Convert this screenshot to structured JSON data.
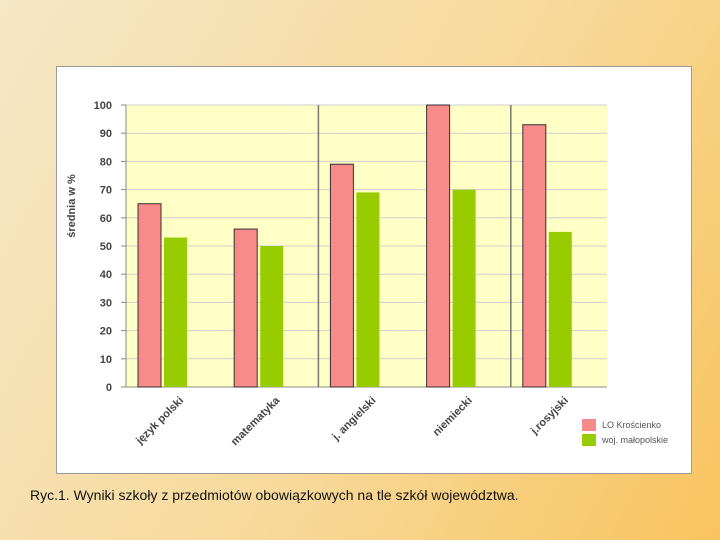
{
  "chart_data": {
    "type": "bar",
    "categories": [
      "język polski",
      "matematyka",
      "j. angielski",
      "niemiecki",
      "j.rosyjski"
    ],
    "series": [
      {
        "name": "LO Krościenko",
        "values": [
          65,
          56,
          79,
          100,
          93
        ],
        "color": "#f88a8a"
      },
      {
        "name": "woj. małopolskie",
        "values": [
          53,
          50,
          69,
          70,
          55
        ],
        "color": "#99cc00"
      }
    ],
    "title": "",
    "xlabel": "",
    "ylabel": "średnia w %",
    "ylim": [
      0,
      100
    ],
    "yticks": [
      0,
      10,
      20,
      30,
      40,
      50,
      60,
      70,
      80,
      90,
      100
    ],
    "grid": true,
    "plot_background": "#ffffc6",
    "legend_position": "bottom-right"
  },
  "caption": "Ryc.1. Wyniki szkoły z przedmiotów obowiązkowych na tle szkół województwa."
}
